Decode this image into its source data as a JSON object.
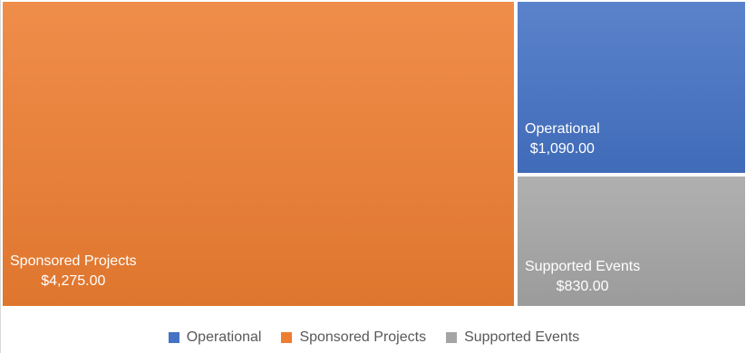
{
  "chart_data": {
    "type": "treemap",
    "title": "",
    "series": [
      {
        "name": "Sponsored Projects",
        "value": 4275,
        "value_label": "$4,275.00",
        "color": "#ED7D31"
      },
      {
        "name": "Operational",
        "value": 1090,
        "value_label": "$1,090.00",
        "color": "#4472C4"
      },
      {
        "name": "Supported Events",
        "value": 830,
        "value_label": "$830.00",
        "color": "#A5A5A5"
      }
    ],
    "legend": {
      "position": "bottom",
      "items": [
        {
          "label": "Operational",
          "color": "#4472C4"
        },
        {
          "label": "Sponsored Projects",
          "color": "#ED7D31"
        },
        {
          "label": "Supported Events",
          "color": "#A5A5A5"
        }
      ]
    }
  }
}
